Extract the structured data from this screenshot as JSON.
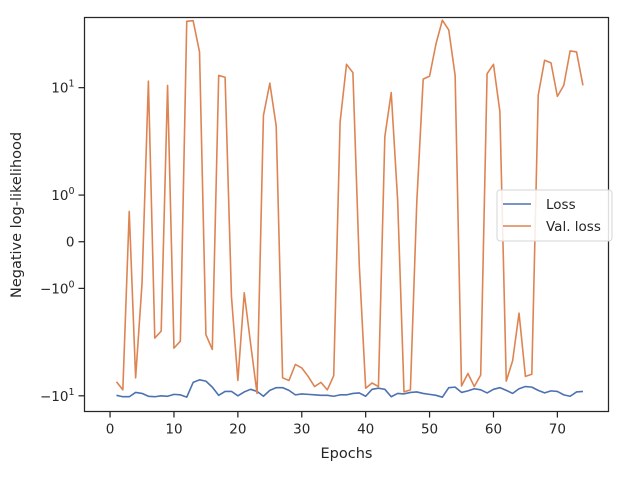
{
  "chart_data": {
    "type": "line",
    "xlabel": "Epochs",
    "ylabel": "Negative log-likelihood",
    "xlim": [
      -4,
      78
    ],
    "ylim": [
      -14,
      45
    ],
    "yscale": "symlog",
    "linthresh": 1,
    "grid": false,
    "legend_position": "center-right",
    "x_ticks": [
      0,
      10,
      20,
      30,
      40,
      50,
      60,
      70
    ],
    "x_tick_labels": [
      "0",
      "10",
      "20",
      "30",
      "40",
      "50",
      "60",
      "70"
    ],
    "y_ticks": [
      -10,
      -1,
      0,
      1,
      10
    ],
    "y_tick_labels": [
      {
        "base": "−10",
        "exp": "1"
      },
      {
        "base": "−10",
        "exp": "0"
      },
      {
        "base": "0",
        "exp": ""
      },
      {
        "base": "10",
        "exp": "0"
      },
      {
        "base": "10",
        "exp": "1"
      }
    ],
    "x": [
      1,
      2,
      3,
      4,
      5,
      6,
      7,
      8,
      9,
      10,
      11,
      12,
      13,
      14,
      15,
      16,
      17,
      18,
      19,
      20,
      21,
      22,
      23,
      24,
      25,
      26,
      27,
      28,
      29,
      30,
      31,
      32,
      33,
      34,
      35,
      36,
      37,
      38,
      39,
      40,
      41,
      42,
      43,
      44,
      45,
      46,
      47,
      48,
      49,
      50,
      51,
      52,
      53,
      54,
      55,
      56,
      57,
      58,
      59,
      60,
      61,
      62,
      63,
      64,
      65,
      66,
      67,
      68,
      69,
      70,
      71,
      72,
      73,
      74
    ],
    "series": [
      {
        "name": "Loss",
        "color": "#4c72b0",
        "values": [
          -9.9,
          -10.2,
          -10.2,
          -9.3,
          -9.5,
          -10.1,
          -10.2,
          -10,
          -10.1,
          -9.7,
          -9.8,
          -10.3,
          -7.5,
          -7.1,
          -7.3,
          -8.3,
          -9.9,
          -9.1,
          -9.1,
          -10,
          -9.2,
          -8.7,
          -9.1,
          -10.1,
          -8.9,
          -8.4,
          -8.4,
          -8.9,
          -9.8,
          -9.6,
          -9.7,
          -9.8,
          -9.9,
          -9.9,
          -10.1,
          -9.8,
          -9.8,
          -9.5,
          -9.4,
          -10.1,
          -8.7,
          -8.5,
          -8.7,
          -10.2,
          -9.5,
          -9.6,
          -9.3,
          -9.2,
          -9.5,
          -9.7,
          -9.9,
          -10.3,
          -8.4,
          -8.3,
          -9.3,
          -9,
          -8.6,
          -8.8,
          -9.4,
          -8.7,
          -8.4,
          -8.9,
          -9.5,
          -8.6,
          -8.2,
          -8.3,
          -8.9,
          -9.4,
          -9,
          -9.1,
          -9.8,
          -10.1,
          -9.2,
          -9.1
        ]
      },
      {
        "name": "Val. loss",
        "color": "#dd8452",
        "values": [
          -7.4,
          -8.8,
          0.65,
          -6.8,
          -0.9,
          11.5,
          -2.9,
          -2.5,
          10.5,
          -3.6,
          -3.1,
          41.5,
          42,
          21.5,
          -2.7,
          -3.7,
          13,
          12.5,
          -1.2,
          -7.2,
          -1.1,
          -3.3,
          -9.5,
          5.5,
          11,
          4.4,
          -6.8,
          -7.2,
          -5.1,
          -5.5,
          -6.6,
          -8.2,
          -7.5,
          -8.8,
          -6.5,
          4.8,
          16.5,
          13.8,
          -0.5,
          -8.5,
          -7.6,
          -8.2,
          3.5,
          9,
          0.9,
          -9.2,
          -8.8,
          0.85,
          12,
          12.8,
          25.5,
          42.5,
          34.5,
          13,
          -8.1,
          -6.2,
          -8.2,
          -6.4,
          13.5,
          16.5,
          6,
          -7.3,
          -4.7,
          -1.7,
          -6.6,
          -6.3,
          8.5,
          18,
          17,
          8.3,
          10.5,
          22,
          21.5,
          10.5
        ]
      }
    ]
  }
}
